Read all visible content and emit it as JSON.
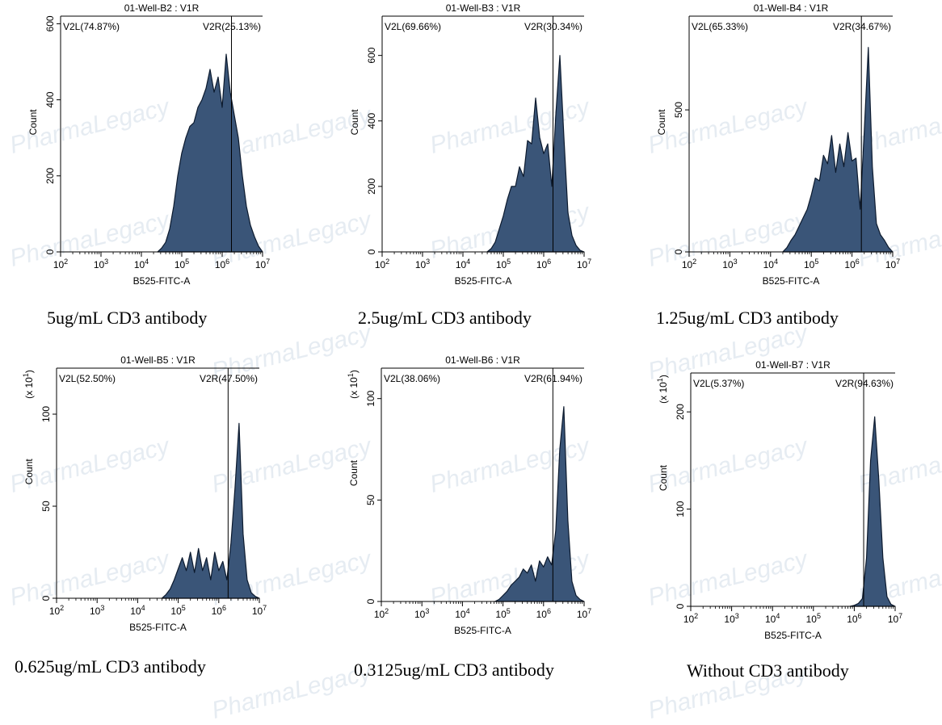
{
  "chart_data": [
    {
      "type": "area",
      "title": "01-Well-B2 : V1R",
      "xlabel": "B525-FITC-A",
      "ylabel": "Count",
      "yscale_label": "",
      "xscale": "log",
      "xlim": [
        2,
        7
      ],
      "ylim": [
        0,
        620
      ],
      "yticks": [
        0,
        200,
        400,
        600
      ],
      "ytick_labels": [
        "0",
        "200",
        "400",
        "600"
      ],
      "xtick_labels": [
        "10^2",
        "10^3",
        "10^4",
        "10^5",
        "10^6",
        "10^7"
      ],
      "gate_log10": 6.23,
      "left_gate_label": "V2L(74.87%)",
      "right_gate_label": "V2R(25.13%)",
      "caption": "5ug/mL CD3 antibody",
      "x_log10": [
        4.4,
        4.5,
        4.6,
        4.7,
        4.8,
        4.9,
        5.0,
        5.1,
        5.2,
        5.3,
        5.4,
        5.5,
        5.6,
        5.7,
        5.8,
        5.9,
        6.0,
        6.1,
        6.2,
        6.3,
        6.4,
        6.5,
        6.6,
        6.7,
        6.8,
        6.9,
        7.0
      ],
      "values": [
        0,
        10,
        25,
        60,
        120,
        200,
        260,
        300,
        330,
        340,
        380,
        400,
        430,
        480,
        420,
        460,
        380,
        520,
        420,
        360,
        300,
        200,
        120,
        70,
        40,
        15,
        0
      ]
    },
    {
      "type": "area",
      "title": "01-Well-B3 : V1R",
      "xlabel": "B525-FITC-A",
      "ylabel": "Count",
      "yscale_label": "",
      "xscale": "log",
      "xlim": [
        2,
        7
      ],
      "ylim": [
        0,
        720
      ],
      "yticks": [
        0,
        200,
        400,
        600
      ],
      "ytick_labels": [
        "0",
        "200",
        "400",
        "600"
      ],
      "xtick_labels": [
        "10^2",
        "10^3",
        "10^4",
        "10^5",
        "10^6",
        "10^7"
      ],
      "gate_log10": 6.23,
      "left_gate_label": "V2L(69.66%)",
      "right_gate_label": "V2R(30.34%)",
      "caption": "2.5ug/mL CD3 antibody",
      "x_log10": [
        4.6,
        4.7,
        4.8,
        4.9,
        5.0,
        5.1,
        5.2,
        5.3,
        5.4,
        5.5,
        5.6,
        5.7,
        5.8,
        5.9,
        6.0,
        6.1,
        6.2,
        6.3,
        6.4,
        6.5,
        6.6,
        6.7,
        6.8,
        6.9,
        7.0
      ],
      "values": [
        0,
        10,
        30,
        70,
        110,
        160,
        200,
        200,
        260,
        230,
        340,
        330,
        470,
        350,
        300,
        330,
        200,
        420,
        600,
        350,
        120,
        50,
        20,
        5,
        0
      ]
    },
    {
      "type": "area",
      "title": "01-Well-B4 : V1R",
      "xlabel": "B525-FITC-A",
      "ylabel": "Count",
      "yscale_label": "",
      "xscale": "log",
      "xlim": [
        2,
        7
      ],
      "ylim": [
        0,
        830
      ],
      "yticks": [
        0,
        500
      ],
      "ytick_labels": [
        "0",
        "500"
      ],
      "xtick_labels": [
        "10^2",
        "10^3",
        "10^4",
        "10^5",
        "10^6",
        "10^7"
      ],
      "gate_log10": 6.23,
      "left_gate_label": "V2L(65.33%)",
      "right_gate_label": "V2R(34.67%)",
      "caption": "1.25ug/mL CD3 antibody",
      "x_log10": [
        4.3,
        4.4,
        4.5,
        4.6,
        4.7,
        4.8,
        4.9,
        5.0,
        5.1,
        5.2,
        5.3,
        5.4,
        5.5,
        5.6,
        5.7,
        5.8,
        5.9,
        6.0,
        6.1,
        6.2,
        6.3,
        6.4,
        6.5,
        6.6,
        6.7,
        6.8,
        6.9,
        7.0
      ],
      "values": [
        0,
        15,
        40,
        60,
        90,
        120,
        150,
        200,
        260,
        250,
        340,
        310,
        410,
        280,
        380,
        300,
        420,
        320,
        330,
        150,
        420,
        720,
        300,
        100,
        60,
        40,
        15,
        0
      ]
    },
    {
      "type": "area",
      "title": "01-Well-B5 : V1R",
      "xlabel": "B525-FITC-A",
      "ylabel": "Count",
      "yscale_label": "(x 10^1)",
      "xscale": "log",
      "xlim": [
        2,
        7
      ],
      "ylim": [
        0,
        125
      ],
      "yticks": [
        0,
        50,
        100
      ],
      "ytick_labels": [
        "0",
        "50",
        "100"
      ],
      "xtick_labels": [
        "10^2",
        "10^3",
        "10^4",
        "10^5",
        "10^6",
        "10^7"
      ],
      "gate_log10": 6.23,
      "left_gate_label": "V2L(52.50%)",
      "right_gate_label": "V2R(47.50%)",
      "caption": "0.625ug/mL CD3 antibody",
      "x_log10": [
        4.6,
        4.7,
        4.8,
        4.9,
        5.0,
        5.1,
        5.2,
        5.3,
        5.4,
        5.5,
        5.6,
        5.7,
        5.8,
        5.9,
        6.0,
        6.1,
        6.2,
        6.3,
        6.4,
        6.5,
        6.6,
        6.7,
        6.8,
        6.9,
        7.0
      ],
      "values": [
        0,
        2,
        5,
        10,
        16,
        22,
        15,
        25,
        14,
        27,
        15,
        22,
        10,
        25,
        15,
        20,
        10,
        30,
        60,
        95,
        35,
        10,
        3,
        1,
        0
      ]
    },
    {
      "type": "area",
      "title": "01-Well-B6 : V1R",
      "xlabel": "B525-FITC-A",
      "ylabel": "Count",
      "yscale_label": "(x 10^1)",
      "xscale": "log",
      "xlim": [
        2,
        7
      ],
      "ylim": [
        0,
        115
      ],
      "yticks": [
        0,
        50,
        100
      ],
      "ytick_labels": [
        "0",
        "50",
        "100"
      ],
      "xtick_labels": [
        "10^2",
        "10^3",
        "10^4",
        "10^5",
        "10^6",
        "10^7"
      ],
      "gate_log10": 6.23,
      "left_gate_label": "V2L(38.06%)",
      "right_gate_label": "V2R(61.94%)",
      "caption": "0.3125ug/mL CD3 antibody",
      "x_log10": [
        4.8,
        4.9,
        5.0,
        5.1,
        5.2,
        5.3,
        5.4,
        5.5,
        5.6,
        5.7,
        5.8,
        5.9,
        6.0,
        6.1,
        6.2,
        6.3,
        6.4,
        6.5,
        6.6,
        6.7,
        6.8,
        6.9,
        7.0
      ],
      "values": [
        0,
        1,
        3,
        5,
        8,
        10,
        12,
        16,
        14,
        18,
        10,
        20,
        17,
        22,
        18,
        35,
        75,
        96,
        40,
        10,
        3,
        1,
        0
      ]
    },
    {
      "type": "area",
      "title": "01-Well-B7 : V1R",
      "xlabel": "B525-FITC-A",
      "ylabel": "Count",
      "yscale_label": "(x 10^1)",
      "xscale": "log",
      "xlim": [
        2,
        7
      ],
      "ylim": [
        0,
        240
      ],
      "yticks": [
        0,
        100,
        200
      ],
      "ytick_labels": [
        "0",
        "100",
        "200"
      ],
      "xtick_labels": [
        "10^2",
        "10^3",
        "10^4",
        "10^5",
        "10^6",
        "10^7"
      ],
      "gate_log10": 6.23,
      "left_gate_label": "V2L(5.37%)",
      "right_gate_label": "V2R(94.63%)",
      "caption": "Without CD3 antibody",
      "x_log10": [
        5.9,
        6.0,
        6.1,
        6.2,
        6.3,
        6.4,
        6.5,
        6.6,
        6.7,
        6.8,
        6.9,
        7.0
      ],
      "values": [
        0,
        1,
        3,
        8,
        50,
        150,
        195,
        130,
        50,
        10,
        2,
        0
      ]
    }
  ],
  "watermark": "PharmaLegacy",
  "colors": {
    "fill": "#3a5578",
    "outline": "#0c1a2e",
    "axis": "#000000",
    "watermark": "#c9d6e4"
  }
}
